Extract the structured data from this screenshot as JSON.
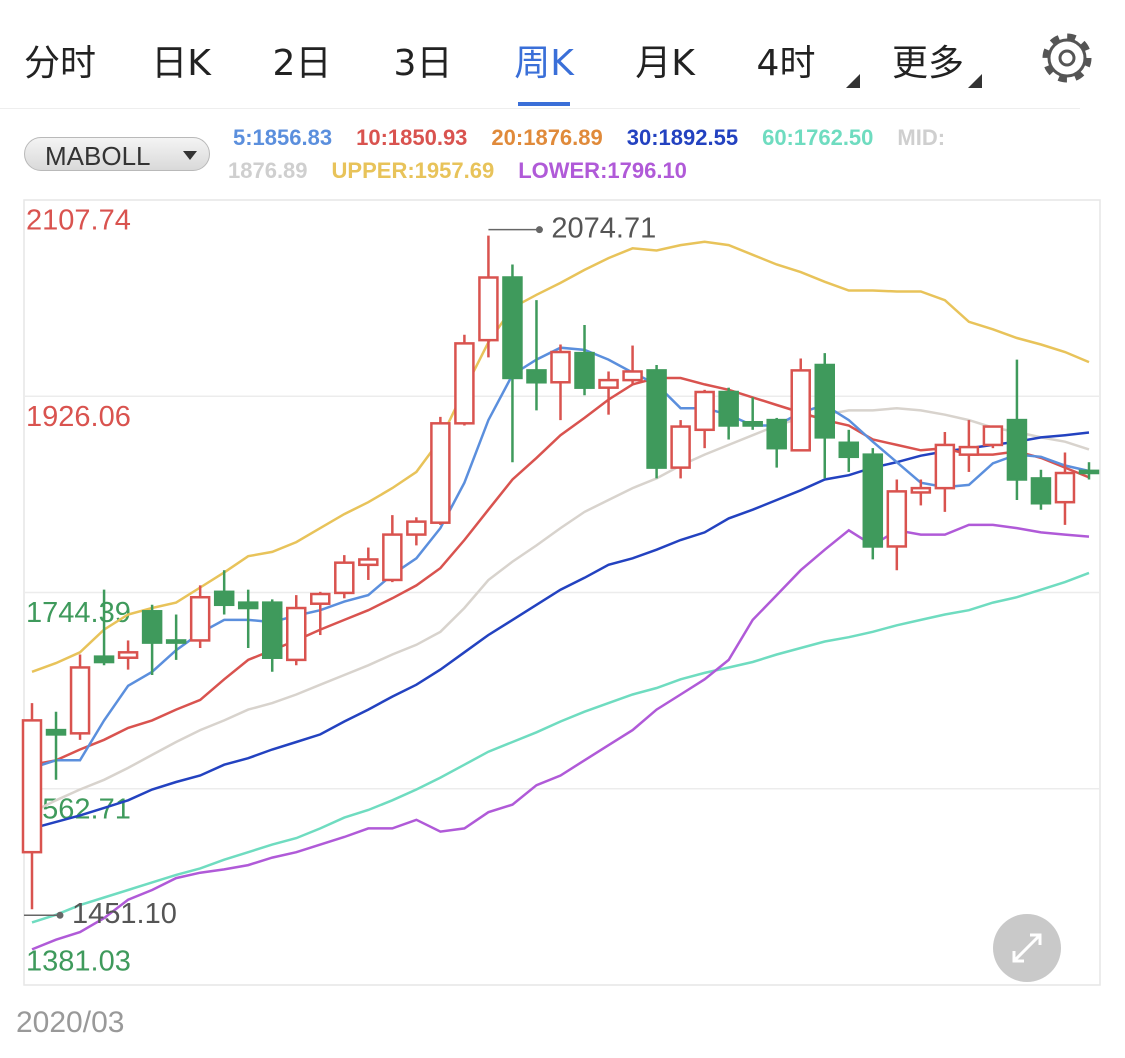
{
  "tabs": [
    "分时",
    "日K",
    "2日",
    "3日",
    "周K",
    "月K",
    "4时",
    "更多"
  ],
  "active_tab": 4,
  "active_color": "#3a6fd8",
  "indicator": "MABOLL",
  "legend": [
    [
      {
        "label": "5:1856.83",
        "color": "#5b8fdd"
      },
      {
        "label": "10:1850.93",
        "color": "#d9534f"
      },
      {
        "label": "20:1876.89",
        "color": "#e08a3a"
      },
      {
        "label": "30:1892.55",
        "color": "#2342c0"
      },
      {
        "label": "60:1762.50",
        "color": "#6fdcc0"
      },
      {
        "label": "MID:",
        "color": "#cfcfcf"
      }
    ],
    [
      {
        "label": "1876.89",
        "color": "#cfcfcf"
      },
      {
        "label": "UPPER:1957.69",
        "color": "#e8c35a"
      },
      {
        "label": "LOWER:1796.10",
        "color": "#b05ad8"
      }
    ]
  ],
  "chart_data": {
    "type": "candlestick",
    "ylim": [
      1381.03,
      2107.74
    ],
    "yticks": [
      1381.03,
      1562.71,
      1744.39,
      1926.06,
      2107.74
    ],
    "ytick_colors": [
      "#3f9a5c",
      "#3f9a5c",
      "#3f9a5c",
      "#d9534f",
      "#d9534f"
    ],
    "grid": true,
    "up_color": "#d9534f",
    "down_color": "#3f9a5c",
    "x_label": "2020/03",
    "annotations": [
      {
        "label": "2074.71"
      },
      {
        "label": "1451.10"
      }
    ],
    "candles": {
      "open": [
        1504,
        1617,
        1614,
        1685,
        1684,
        1727,
        1700,
        1700,
        1745,
        1735,
        1735,
        1682,
        1734,
        1744,
        1770,
        1756,
        1798,
        1809,
        1901,
        1978,
        2036,
        1950,
        1939,
        1966,
        1934,
        1941,
        1950,
        1860,
        1895,
        1930,
        1902,
        1904,
        1876,
        1955,
        1883,
        1872,
        1787,
        1837,
        1841,
        1872,
        1881,
        1904,
        1850,
        1828,
        1857
      ],
      "high": [
        1642,
        1634,
        1687,
        1747,
        1700,
        1733,
        1724,
        1751,
        1765,
        1747,
        1738,
        1742,
        1745,
        1779,
        1786,
        1816,
        1814,
        1907,
        1983,
        2074.71,
        2048,
        2015,
        1974,
        1992,
        1949,
        1973,
        1955,
        1904,
        1932,
        1934,
        1925,
        1906,
        1961,
        1966,
        1895,
        1878,
        1849,
        1849,
        1893,
        1904,
        1899,
        1960,
        1858,
        1874,
        1865
      ],
      "low": [
        1451.1,
        1571,
        1608,
        1677,
        1673,
        1668,
        1682,
        1693,
        1724,
        1693,
        1671,
        1677,
        1705,
        1739,
        1756,
        1754,
        1788,
        1807,
        1899,
        1962,
        1865,
        1913,
        1904,
        1927,
        1909,
        1937,
        1850,
        1850,
        1878,
        1886,
        1895,
        1860,
        1875,
        1850,
        1856,
        1775,
        1765,
        1825,
        1819,
        1856,
        1878,
        1830,
        1821,
        1807,
        1849
      ],
      "close": [
        1626,
        1613,
        1675,
        1680,
        1689,
        1698,
        1698,
        1740,
        1733,
        1730,
        1684,
        1730,
        1743,
        1772,
        1775,
        1798,
        1810,
        1901,
        1975,
        2036,
        1943,
        1939,
        1967,
        1934,
        1941,
        1949,
        1860,
        1898,
        1930,
        1899,
        1899,
        1878,
        1950,
        1888,
        1870,
        1787,
        1838,
        1841,
        1881,
        1879,
        1898,
        1849,
        1827,
        1855,
        1855
      ]
    },
    "lines": [
      {
        "color": "#6fdcc0",
        "values": [
          1439,
          1446,
          1455,
          1462,
          1469,
          1476,
          1483,
          1489,
          1497,
          1504,
          1511,
          1517,
          1526,
          1536,
          1543,
          1552,
          1562,
          1573,
          1585,
          1597,
          1606,
          1615,
          1625,
          1634,
          1642,
          1650,
          1656,
          1664,
          1670,
          1675,
          1680,
          1687,
          1693,
          1699,
          1703,
          1708,
          1714,
          1719,
          1724,
          1728,
          1735,
          1740,
          1747,
          1754,
          1762.5
        ]
      },
      {
        "color": "#b05ad8",
        "values": [
          1414,
          1423,
          1430,
          1443,
          1460,
          1469,
          1480,
          1485,
          1488,
          1492,
          1499,
          1504,
          1511,
          1518,
          1526,
          1526,
          1534,
          1523,
          1526,
          1541,
          1548,
          1566,
          1575,
          1589,
          1603,
          1617,
          1636,
          1650,
          1664,
          1682,
          1719,
          1742,
          1765,
          1784,
          1802,
          1788,
          1802,
          1798,
          1798,
          1807,
          1807,
          1804,
          1800,
          1798,
          1796.1
        ]
      },
      {
        "color": "#e8c35a",
        "values": [
          1671,
          1679,
          1689,
          1710,
          1724,
          1730,
          1735,
          1749,
          1763,
          1778,
          1782,
          1791,
          1804,
          1817,
          1828,
          1841,
          1856,
          1886,
          1932,
          1976,
          2008,
          2020,
          2031,
          2043,
          2054,
          2063,
          2061,
          2066,
          2069,
          2066,
          2057,
          2048,
          2041,
          2032,
          2024,
          2024,
          2023,
          2023,
          2015,
          1995,
          1988,
          1980,
          1974,
          1967,
          1957.69
        ]
      },
      {
        "color": "#d8d3cd",
        "values": [
          1541,
          1552,
          1562,
          1571,
          1582,
          1594,
          1606,
          1617,
          1626,
          1636,
          1642,
          1650,
          1659,
          1668,
          1677,
          1687,
          1696,
          1708,
          1730,
          1756,
          1773,
          1788,
          1804,
          1819,
          1830,
          1841,
          1850,
          1862,
          1872,
          1881,
          1890,
          1899,
          1906,
          1909,
          1913,
          1913,
          1915,
          1913,
          1909,
          1904,
          1897,
          1893,
          1888,
          1884,
          1876.89
        ]
      },
      {
        "color": "#2342c0",
        "values": [
          1526,
          1532,
          1538,
          1545,
          1552,
          1562,
          1569,
          1575,
          1585,
          1591,
          1599,
          1606,
          1613,
          1625,
          1636,
          1648,
          1659,
          1673,
          1689,
          1705,
          1719,
          1733,
          1747,
          1758,
          1770,
          1776,
          1784,
          1793,
          1800,
          1813,
          1821,
          1830,
          1839,
          1849,
          1853,
          1860,
          1865,
          1871,
          1875,
          1878,
          1881,
          1884,
          1888,
          1890,
          1892.55
        ]
      },
      {
        "color": "#d9534f",
        "values": [
          1585,
          1589,
          1599,
          1608,
          1619,
          1626,
          1636,
          1645,
          1664,
          1682,
          1691,
          1700,
          1710,
          1719,
          1728,
          1739,
          1751,
          1767,
          1793,
          1821,
          1849,
          1869,
          1890,
          1906,
          1923,
          1937,
          1943,
          1943,
          1937,
          1932,
          1925,
          1918,
          1911,
          1904,
          1899,
          1886,
          1881,
          1876,
          1878,
          1872,
          1872,
          1875,
          1869,
          1860,
          1850.93
        ]
      },
      {
        "color": "#5b8fdd",
        "values": [
          1582,
          1589,
          1589,
          1626,
          1658,
          1671,
          1691,
          1707,
          1719,
          1719,
          1717,
          1723,
          1728,
          1736,
          1742,
          1761,
          1776,
          1804,
          1846,
          1904,
          1946,
          1960,
          1971,
          1969,
          1960,
          1948,
          1937,
          1915,
          1915,
          1909,
          1899,
          1899,
          1911,
          1918,
          1904,
          1884,
          1865,
          1846,
          1842,
          1844,
          1864,
          1872,
          1870,
          1862,
          1856.83
        ]
      }
    ]
  }
}
